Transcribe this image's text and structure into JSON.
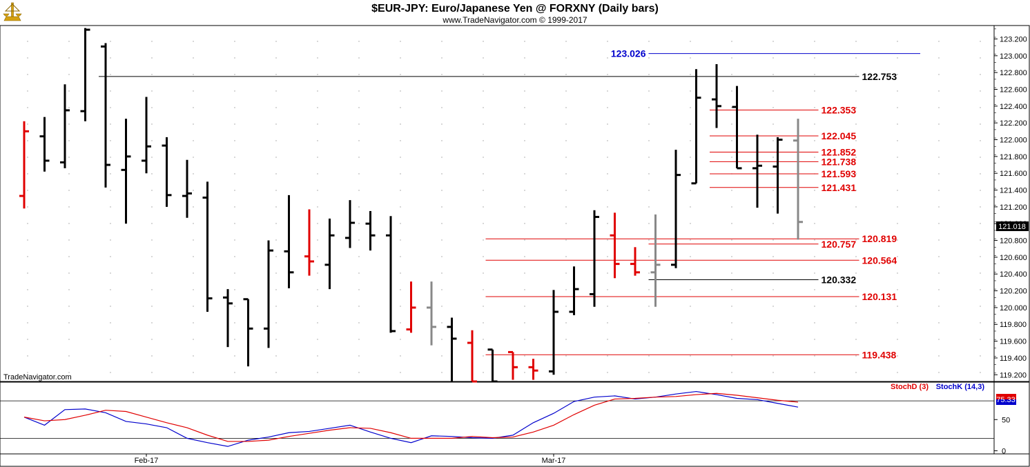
{
  "header": {
    "title": "$EUR-JPY:  Euro/Japanese Yen @ FORXNY  (Daily bars)",
    "subtitle": "www.TradeNavigator.com © 1999-2017",
    "watermark": "TradeNavigator.com"
  },
  "colors": {
    "up": "#000000",
    "down": "#e00000",
    "neutral": "#888888",
    "support_resistance": "#e00000",
    "key_level": "#000000",
    "high_level": "#0000cc",
    "stochK": "#0000cc",
    "stochD": "#e00000"
  },
  "chart_data": [
    {
      "type": "ohlc",
      "title": "$EUR-JPY:  Euro/Japanese Yen @ FORXNY  (Daily bars)",
      "ylim": [
        119.12,
        123.36
      ],
      "y_ticks": [
        "123.200",
        "123.000",
        "122.800",
        "122.600",
        "122.400",
        "122.200",
        "122.000",
        "121.800",
        "121.600",
        "121.400",
        "121.200",
        "121.000",
        "120.800",
        "120.600",
        "120.400",
        "120.200",
        "120.000",
        "119.800",
        "119.600",
        "119.400",
        "119.200"
      ],
      "x_labels": [
        {
          "index": 6,
          "label": "Feb-17"
        },
        {
          "index": 26,
          "label": "Mar-17"
        }
      ],
      "last_price": "121.018",
      "bars": [
        {
          "o": 121.33,
          "h": 122.22,
          "l": 121.18,
          "c": 122.1,
          "color": "down"
        },
        {
          "o": 122.04,
          "h": 122.27,
          "l": 121.62,
          "c": 121.75,
          "color": "up"
        },
        {
          "o": 121.73,
          "h": 122.66,
          "l": 121.66,
          "c": 122.35,
          "color": "up"
        },
        {
          "o": 122.34,
          "h": 123.33,
          "l": 122.22,
          "c": 123.31,
          "color": "up"
        },
        {
          "o": 123.11,
          "h": 123.15,
          "l": 121.43,
          "c": 121.7,
          "color": "up"
        },
        {
          "o": 121.64,
          "h": 122.25,
          "l": 121.0,
          "c": 121.8,
          "color": "up"
        },
        {
          "o": 121.75,
          "h": 122.51,
          "l": 121.6,
          "c": 121.92,
          "color": "up"
        },
        {
          "o": 121.93,
          "h": 122.03,
          "l": 121.2,
          "c": 121.34,
          "color": "up"
        },
        {
          "o": 121.33,
          "h": 121.76,
          "l": 121.07,
          "c": 121.36,
          "color": "up"
        },
        {
          "o": 121.31,
          "h": 121.5,
          "l": 119.95,
          "c": 120.11,
          "color": "up"
        },
        {
          "o": 120.12,
          "h": 120.22,
          "l": 119.53,
          "c": 120.05,
          "color": "up"
        },
        {
          "o": 120.1,
          "h": 120.1,
          "l": 119.3,
          "c": 119.75,
          "color": "up"
        },
        {
          "o": 119.75,
          "h": 120.8,
          "l": 119.52,
          "c": 120.68,
          "color": "up"
        },
        {
          "o": 120.67,
          "h": 121.34,
          "l": 120.23,
          "c": 120.42,
          "color": "up"
        },
        {
          "o": 120.61,
          "h": 121.17,
          "l": 120.38,
          "c": 120.55,
          "color": "down"
        },
        {
          "o": 120.51,
          "h": 121.06,
          "l": 120.22,
          "c": 120.86,
          "color": "up"
        },
        {
          "o": 120.83,
          "h": 121.28,
          "l": 120.71,
          "c": 121.01,
          "color": "up"
        },
        {
          "o": 121.0,
          "h": 121.15,
          "l": 120.68,
          "c": 120.86,
          "color": "up"
        },
        {
          "o": 120.86,
          "h": 121.09,
          "l": 119.7,
          "c": 119.72,
          "color": "up"
        },
        {
          "o": 119.74,
          "h": 120.31,
          "l": 119.7,
          "c": 120.0,
          "color": "down"
        },
        {
          "o": 120.0,
          "h": 120.31,
          "l": 119.55,
          "c": 119.77,
          "color": "neutral"
        },
        {
          "o": 119.77,
          "h": 119.88,
          "l": 119.12,
          "c": 119.63,
          "color": "up"
        },
        {
          "o": 119.58,
          "h": 119.73,
          "l": 119.12,
          "c": 119.12,
          "color": "down"
        },
        {
          "o": 119.5,
          "h": 119.5,
          "l": 119.12,
          "c": 119.12,
          "color": "up"
        },
        {
          "o": 119.47,
          "h": 119.47,
          "l": 119.14,
          "c": 119.29,
          "color": "down"
        },
        {
          "o": 119.29,
          "h": 119.39,
          "l": 119.14,
          "c": 119.25,
          "color": "down"
        },
        {
          "o": 119.24,
          "h": 120.21,
          "l": 119.2,
          "c": 119.95,
          "color": "up"
        },
        {
          "o": 119.95,
          "h": 120.49,
          "l": 119.91,
          "c": 120.22,
          "color": "up"
        },
        {
          "o": 120.16,
          "h": 121.16,
          "l": 120.01,
          "c": 121.08,
          "color": "up"
        },
        {
          "o": 120.86,
          "h": 121.13,
          "l": 120.35,
          "c": 120.52,
          "color": "down"
        },
        {
          "o": 120.52,
          "h": 120.72,
          "l": 120.38,
          "c": 120.42,
          "color": "down"
        },
        {
          "o": 120.42,
          "h": 121.11,
          "l": 120.01,
          "c": 120.51,
          "color": "neutral"
        },
        {
          "o": 120.51,
          "h": 121.88,
          "l": 120.47,
          "c": 121.58,
          "color": "up"
        },
        {
          "o": 121.48,
          "h": 122.84,
          "l": 121.48,
          "c": 122.5,
          "color": "up"
        },
        {
          "o": 122.48,
          "h": 122.9,
          "l": 122.14,
          "c": 122.4,
          "color": "up"
        },
        {
          "o": 122.39,
          "h": 122.64,
          "l": 121.66,
          "c": 121.66,
          "color": "up"
        },
        {
          "o": 121.66,
          "h": 122.06,
          "l": 121.19,
          "c": 121.69,
          "color": "up"
        },
        {
          "o": 121.68,
          "h": 122.03,
          "l": 121.12,
          "c": 122.0,
          "color": "up"
        },
        {
          "o": 121.99,
          "h": 122.25,
          "l": 120.81,
          "c": 121.02,
          "color": "neutral"
        }
      ],
      "levels": [
        {
          "value": 123.026,
          "label": "123.026",
          "color": "high_level",
          "from": 31,
          "to": 44,
          "label_side": "left"
        },
        {
          "value": 122.753,
          "label": "122.753",
          "color": "key_level",
          "from": 4,
          "to": 41,
          "label_side": "right"
        },
        {
          "value": 122.353,
          "label": "122.353",
          "color": "support_resistance",
          "from": 34,
          "to": 39,
          "label_side": "right"
        },
        {
          "value": 122.045,
          "label": "122.045",
          "color": "support_resistance",
          "from": 34,
          "to": 39,
          "label_side": "right"
        },
        {
          "value": 121.852,
          "label": "121.852",
          "color": "support_resistance",
          "from": 34,
          "to": 39,
          "label_side": "right"
        },
        {
          "value": 121.738,
          "label": "121.738",
          "color": "support_resistance",
          "from": 34,
          "to": 39,
          "label_side": "right"
        },
        {
          "value": 121.593,
          "label": "121.593",
          "color": "support_resistance",
          "from": 34,
          "to": 39,
          "label_side": "right"
        },
        {
          "value": 121.431,
          "label": "121.431",
          "color": "support_resistance",
          "from": 34,
          "to": 39,
          "label_side": "right"
        },
        {
          "value": 120.819,
          "label": "120.819",
          "color": "support_resistance",
          "from": 23,
          "to": 41,
          "label_side": "right"
        },
        {
          "value": 120.757,
          "label": "120.757",
          "color": "support_resistance",
          "from": 31,
          "to": 39,
          "label_side": "right"
        },
        {
          "value": 120.564,
          "label": "120.564",
          "color": "support_resistance",
          "from": 23,
          "to": 41,
          "label_side": "right"
        },
        {
          "value": 120.332,
          "label": "120.332",
          "color": "key_level",
          "from": 31,
          "to": 39,
          "label_side": "right"
        },
        {
          "value": 120.131,
          "label": "120.131",
          "color": "support_resistance",
          "from": 23,
          "to": 41,
          "label_side": "right"
        },
        {
          "value": 119.438,
          "label": "119.438",
          "color": "support_resistance",
          "from": 23,
          "to": 41,
          "label_side": "right"
        }
      ]
    },
    {
      "type": "line",
      "legend": [
        "StochD (3)",
        "StochK (14,3)"
      ],
      "ylim": [
        -5,
        110
      ],
      "y_ticks": [
        "50",
        "0"
      ],
      "hlines": [
        80,
        20
      ],
      "last_value": "75.33",
      "series": [
        {
          "name": "StochK (14,3)",
          "color": "stochK",
          "values": [
            54,
            41,
            66,
            67,
            61,
            47,
            43,
            37,
            20,
            13,
            7,
            17,
            22,
            29,
            31,
            36,
            41,
            30,
            20,
            13,
            24,
            23,
            21,
            20,
            25,
            45,
            60,
            79,
            86,
            88,
            83,
            86,
            91,
            95,
            90,
            84,
            82,
            76,
            70
          ]
        },
        {
          "name": "StochD (3)",
          "color": "stochD",
          "values": [
            54,
            48,
            50,
            57,
            65,
            63,
            54,
            45,
            37,
            25,
            15,
            15,
            17,
            23,
            28,
            33,
            37,
            36,
            29,
            20,
            20,
            20,
            23,
            21,
            22,
            30,
            41,
            58,
            73,
            83,
            84,
            86,
            87,
            90,
            92,
            89,
            85,
            81,
            78
          ]
        }
      ]
    }
  ]
}
